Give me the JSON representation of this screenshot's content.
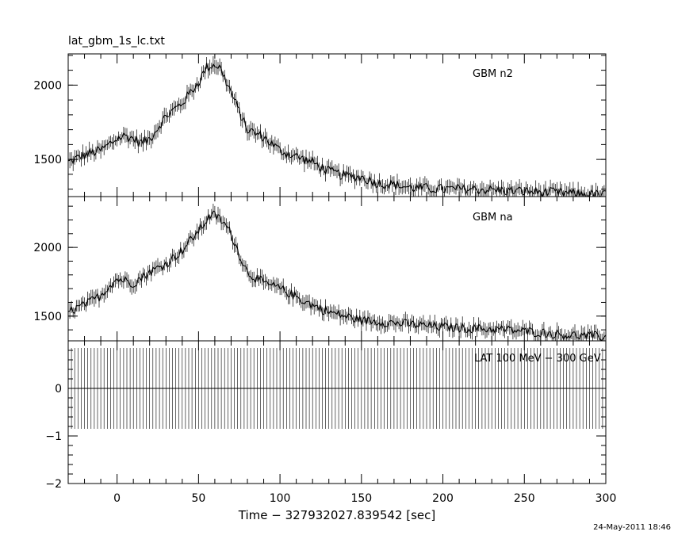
{
  "page": {
    "title": "lat_gbm_1s_lc.txt",
    "timestamp": "24-May-2011 18:46"
  },
  "chart_data": {
    "type": "line",
    "x_label": "Time − 327932027.839542 [sec]",
    "x_range": [
      -30,
      300
    ],
    "x_ticks": [
      0,
      50,
      100,
      150,
      200,
      250,
      300
    ],
    "x_tick_labels": [
      "0",
      "50",
      "100",
      "150",
      "200",
      "250",
      "300"
    ],
    "panels": [
      {
        "name": "GBM n2",
        "ylim": [
          1250,
          2210
        ],
        "y_ticks": [
          1500,
          2000
        ],
        "y_tick_labels": [
          "1500",
          "2000"
        ],
        "profile": {
          "x": [
            -30,
            -20,
            -10,
            0,
            5,
            10,
            15,
            20,
            30,
            40,
            45,
            50,
            55,
            60,
            63,
            66,
            70,
            75,
            80,
            90,
            100,
            110,
            120,
            130,
            140,
            150,
            160,
            170,
            180,
            200,
            220,
            240,
            260,
            280,
            300
          ],
          "y": [
            1480,
            1530,
            1560,
            1640,
            1660,
            1640,
            1610,
            1640,
            1790,
            1880,
            1950,
            2020,
            2120,
            2140,
            2120,
            2050,
            1950,
            1820,
            1700,
            1650,
            1560,
            1520,
            1480,
            1420,
            1390,
            1380,
            1340,
            1330,
            1310,
            1300,
            1300,
            1290,
            1280,
            1270,
            1260
          ]
        },
        "noise": 35
      },
      {
        "name": "GBM na",
        "ylim": [
          1320,
          2370
        ],
        "y_ticks": [
          1500,
          2000
        ],
        "y_tick_labels": [
          "1500",
          "2000"
        ],
        "profile": {
          "x": [
            -30,
            -20,
            -10,
            -5,
            0,
            5,
            10,
            15,
            20,
            30,
            40,
            45,
            50,
            55,
            58,
            62,
            66,
            70,
            75,
            80,
            90,
            100,
            110,
            120,
            130,
            140,
            150,
            160,
            170,
            180,
            200,
            220,
            240,
            260,
            280,
            300
          ],
          "y": [
            1530,
            1580,
            1650,
            1720,
            1770,
            1760,
            1740,
            1780,
            1820,
            1880,
            1980,
            2050,
            2120,
            2200,
            2240,
            2220,
            2170,
            2100,
            1950,
            1820,
            1740,
            1700,
            1640,
            1580,
            1530,
            1500,
            1470,
            1460,
            1450,
            1440,
            1420,
            1410,
            1400,
            1380,
            1360,
            1350
          ]
        },
        "noise": 35
      },
      {
        "name": "LAT 100 MeV − 300 GeV",
        "ylim": [
          -2,
          1
        ],
        "y_ticks": [
          -2,
          -1,
          0
        ],
        "y_tick_labels": [
          "−2",
          "−1",
          "0"
        ],
        "value": 0,
        "error": 0.85
      }
    ]
  }
}
